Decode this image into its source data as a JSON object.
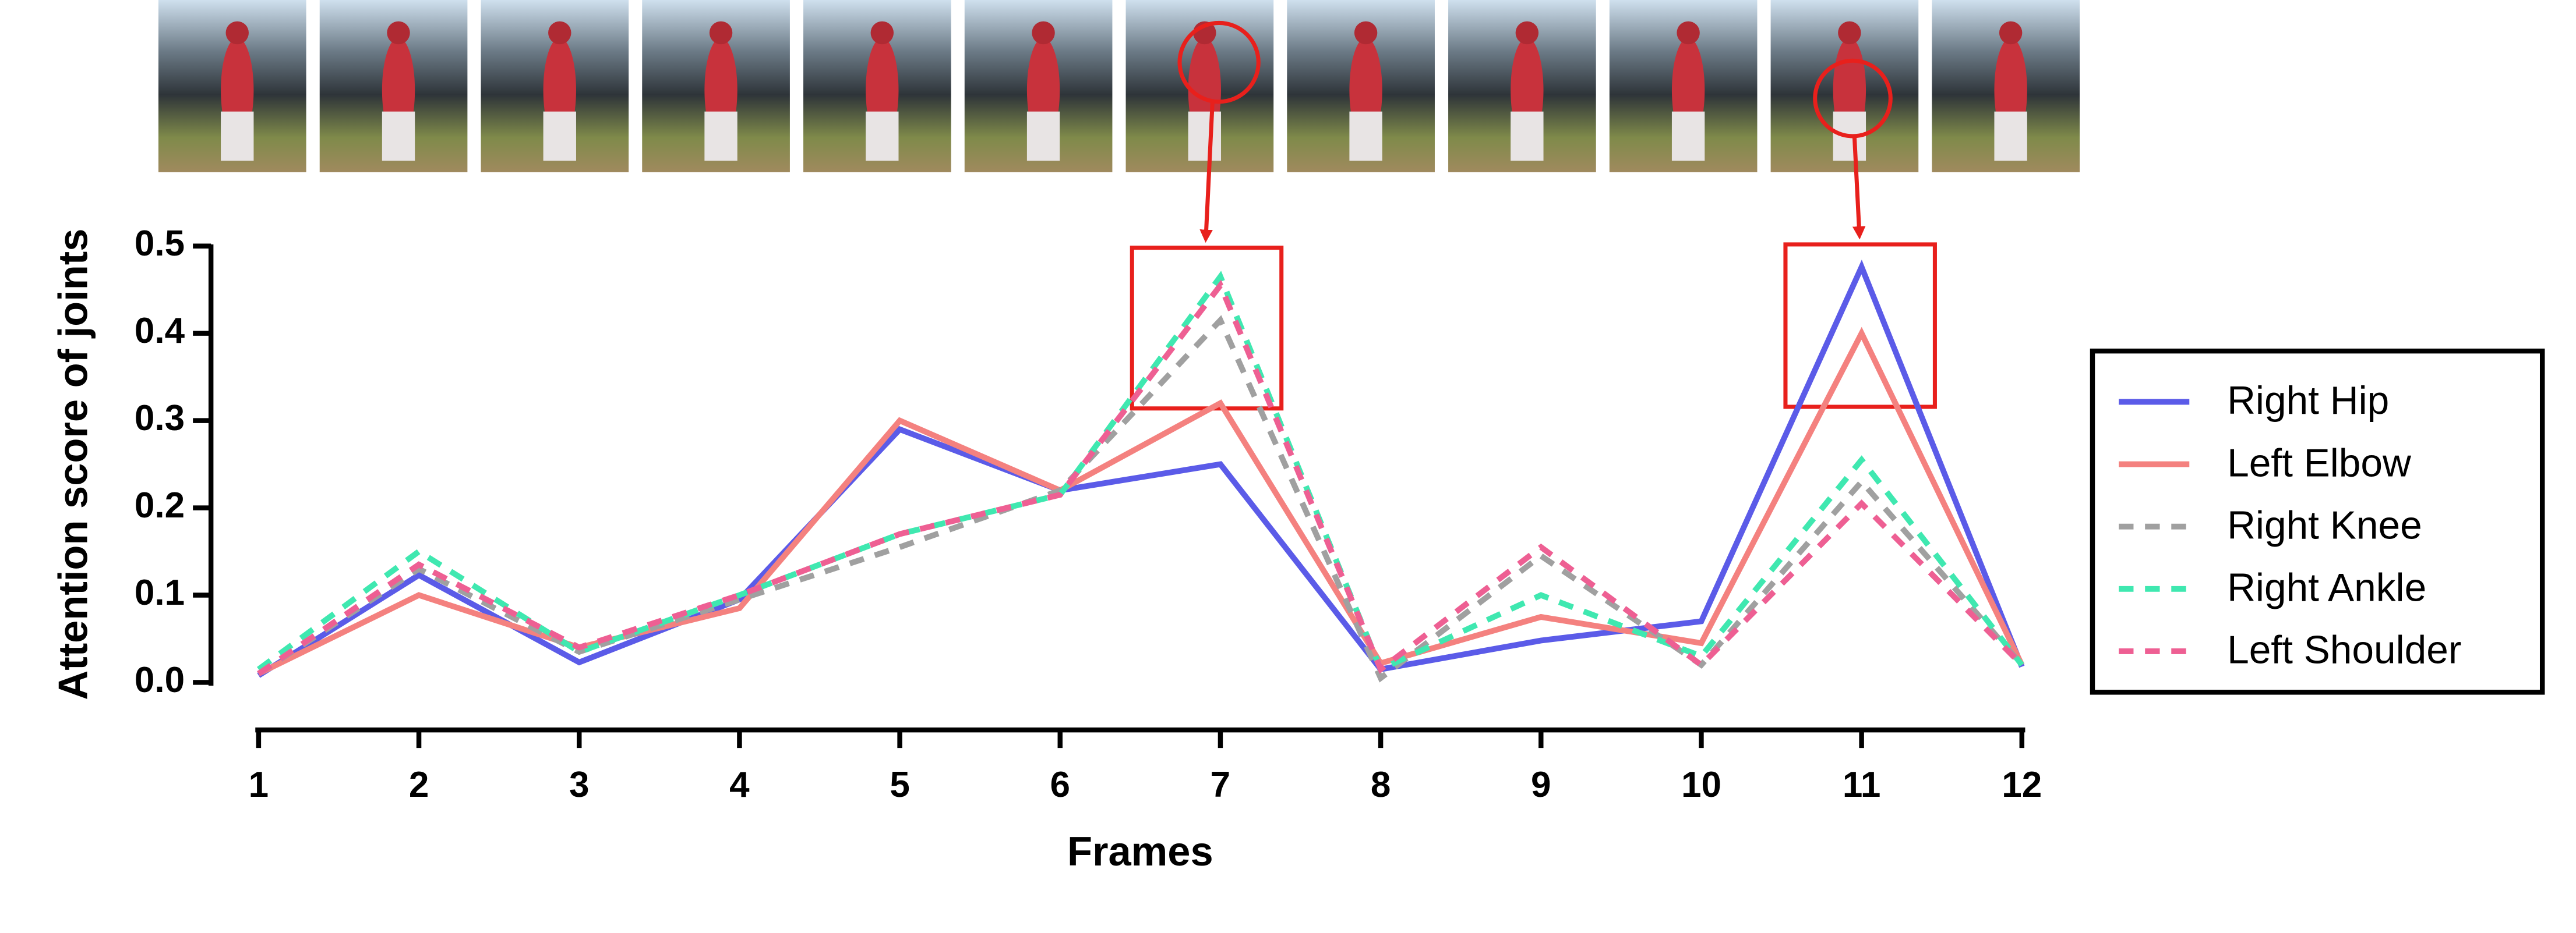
{
  "chart_data": {
    "type": "line",
    "x_label": "Frames",
    "y_label": "Attention score of joints",
    "x": [
      1,
      2,
      3,
      4,
      5,
      6,
      7,
      8,
      9,
      10,
      11,
      12
    ],
    "xlim": [
      1,
      12
    ],
    "xticks": [
      1,
      2,
      3,
      4,
      5,
      6,
      7,
      8,
      9,
      10,
      11,
      12
    ],
    "ylim": [
      0,
      0.5
    ],
    "yticks": [
      {
        "value": 0,
        "label": "0.0"
      },
      0.1,
      0.2,
      0.3,
      0.4,
      0.5
    ],
    "legend": "right",
    "series": [
      {
        "name": "Right Hip",
        "color": "#5b5be8",
        "line_style": "solid",
        "values": [
          0.008,
          0.123,
          0.023,
          0.095,
          0.29,
          0.22,
          0.25,
          0.015,
          0.048,
          0.07,
          0.476,
          0.018
        ]
      },
      {
        "name": "Left Elbow",
        "color": "#f4817f",
        "line_style": "solid",
        "values": [
          0.01,
          0.1,
          0.04,
          0.085,
          0.3,
          0.22,
          0.32,
          0.022,
          0.075,
          0.045,
          0.4,
          0.02
        ]
      },
      {
        "name": "Right Knee",
        "color": "#a0a0a0",
        "line_style": "dashed",
        "values": [
          0.01,
          0.13,
          0.035,
          0.095,
          0.155,
          0.22,
          0.415,
          0.005,
          0.145,
          0.02,
          0.23,
          0.02
        ]
      },
      {
        "name": "Right Ankle",
        "color": "#3fe8b0",
        "line_style": "dashed",
        "values": [
          0.015,
          0.15,
          0.035,
          0.1,
          0.17,
          0.215,
          0.465,
          0.015,
          0.1,
          0.03,
          0.255,
          0.02
        ]
      },
      {
        "name": "Left Shoulder",
        "color": "#ee5f93",
        "line_style": "dashed",
        "values": [
          0.01,
          0.135,
          0.04,
          0.1,
          0.17,
          0.215,
          0.455,
          0.015,
          0.155,
          0.02,
          0.205,
          0.02
        ]
      }
    ]
  }
}
